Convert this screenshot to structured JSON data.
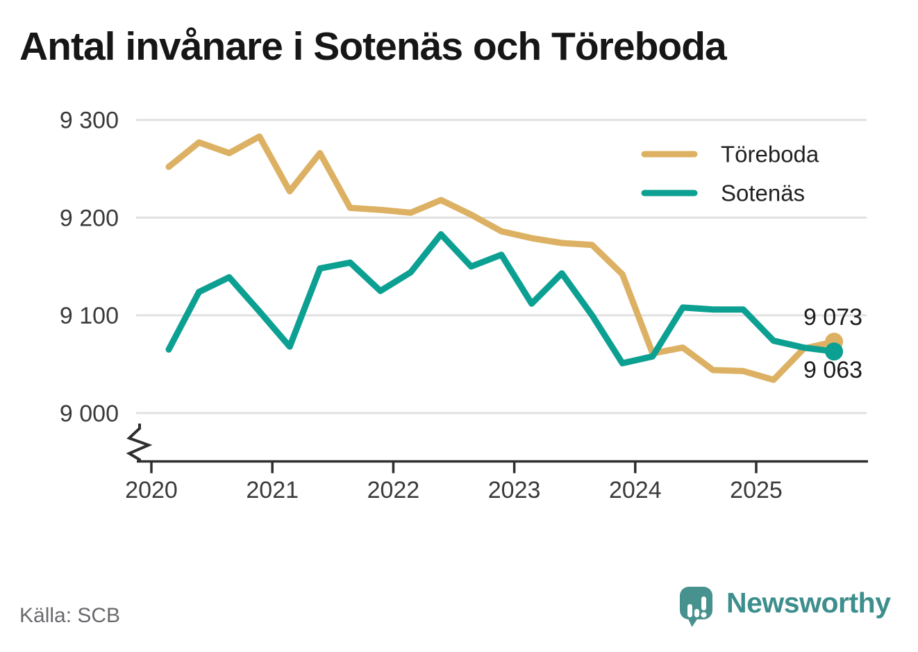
{
  "title": "Antal invånare i Sotenäs och Töreboda",
  "source": "Källa: SCB",
  "branding": {
    "logo_text": "Newsworthy",
    "text_color": "#3d8e8c",
    "icon_color": "#47918e"
  },
  "chart_data": {
    "type": "line",
    "title": "Antal invånare i Sotenäs och Töreboda",
    "x_unit": "quarter",
    "x_labels": [
      "2020 Q1",
      "2020 Q2",
      "2020 Q3",
      "2020 Q4",
      "2021 Q1",
      "2021 Q2",
      "2021 Q3",
      "2021 Q4",
      "2022 Q1",
      "2022 Q2",
      "2022 Q3",
      "2022 Q4",
      "2023 Q1",
      "2023 Q2",
      "2023 Q3",
      "2023 Q4",
      "2024 Q1",
      "2024 Q2",
      "2024 Q3",
      "2024 Q4",
      "2025 Q1",
      "2025 Q2",
      "2025 Q3"
    ],
    "series": [
      {
        "name": "Töreboda",
        "color": "#ddb163",
        "values": [
          9252,
          9277,
          9266,
          9283,
          9227,
          9266,
          9210,
          9208,
          9205,
          9218,
          9203,
          9186,
          9179,
          9174,
          9172,
          9142,
          9061,
          9067,
          9044,
          9043,
          9034,
          9066,
          9073
        ]
      },
      {
        "name": "Sotenäs",
        "color": "#0ca092",
        "values": [
          9065,
          9124,
          9139,
          9104,
          9068,
          9148,
          9154,
          9125,
          9144,
          9183,
          9150,
          9162,
          9112,
          9143,
          9100,
          9051,
          9058,
          9108,
          9106,
          9106,
          9074,
          9067,
          9063
        ]
      }
    ],
    "yticks": [
      {
        "label": "9 300",
        "value": 9300
      },
      {
        "label": "9 200",
        "value": 9200
      },
      {
        "label": "9 100",
        "value": 9100
      },
      {
        "label": "9 000",
        "value": 9000
      }
    ],
    "xticks": [
      {
        "label": "2020",
        "value": 2020
      },
      {
        "label": "2021",
        "value": 2021
      },
      {
        "label": "2022",
        "value": 2022
      },
      {
        "label": "2023",
        "value": 2023
      },
      {
        "label": "2024",
        "value": 2024
      },
      {
        "label": "2025",
        "value": 2025
      }
    ],
    "ylim": [
      9000,
      9300
    ],
    "axis_break": true,
    "grid": "horizontal",
    "legend_position": "top-right",
    "end_labels": [
      {
        "series": "Töreboda",
        "text": "9 073"
      },
      {
        "series": "Sotenäs",
        "text": "9 063"
      }
    ]
  }
}
